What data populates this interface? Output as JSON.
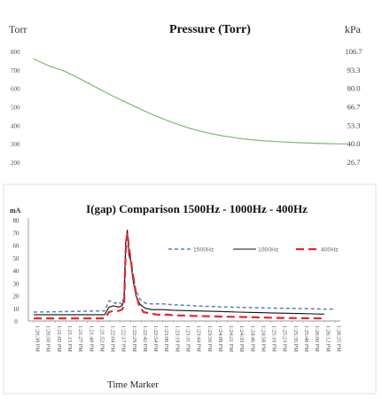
{
  "chart_data": [
    {
      "type": "line",
      "title": "Pressure (Torr)",
      "ylabel_left": "Torr",
      "ylabel_right": "kPa",
      "left_ticks": [
        "800",
        "700",
        "600",
        "500",
        "400",
        "300",
        "200"
      ],
      "right_ticks": [
        "106.7",
        "93.3",
        "80.0",
        "66.7",
        "53.3",
        "40.0",
        "26.7"
      ],
      "ylim": [
        180,
        820
      ],
      "grid": false,
      "series": [
        {
          "color": "#7cbc6a",
          "x": [
            0,
            5,
            10,
            15,
            20,
            25,
            30,
            35,
            40,
            45,
            50,
            55,
            60,
            65,
            70,
            75,
            80,
            85,
            90,
            95,
            100
          ],
          "values": [
            760,
            722,
            692,
            650,
            605,
            560,
            520,
            480,
            443,
            410,
            382,
            360,
            343,
            330,
            320,
            314,
            309,
            305,
            302,
            300,
            299
          ]
        }
      ]
    },
    {
      "type": "line",
      "title": "I(gap) Comparison  1500Hz - 1000Hz - 400Hz",
      "ylabel": "mA",
      "xlabel": "Time Marker",
      "ylim": [
        0,
        80
      ],
      "yticks": [
        0,
        10,
        20,
        30,
        40,
        50,
        60,
        70,
        80
      ],
      "grid": false,
      "legend_position": "upper-right",
      "categories": [
        "1:20:38 PM",
        "1:20:50 PM",
        "1:21:02 PM",
        "1:21:15 PM",
        "1:21:27 PM",
        "1:21:40 PM",
        "1:21:52 PM",
        "1:22:04 PM",
        "1:22:17 PM",
        "1:22:29 PM",
        "1:22:42 PM",
        "1:22:54 PM",
        "1:23:06 PM",
        "1:23:19 PM",
        "1:23:31 PM",
        "1:23:44 PM",
        "1:23:56 PM",
        "1:24:08 PM",
        "1:24:21 PM",
        "1:24:33 PM",
        "1:24:46 PM",
        "1:24:58 PM",
        "1:25:10 PM",
        "1:25:23 PM",
        "1:25:35 PM",
        "1:25:48 PM",
        "1:26:00 PM",
        "1:26:12 PM",
        "1:26:25 PM"
      ],
      "series": [
        {
          "name": "1500Hz",
          "color": "#4f81bd",
          "dash": "dashed",
          "x": [
            0,
            6.6,
            7.0,
            7.3,
            7.6,
            7.9,
            8.2,
            8.4,
            8.55,
            8.7,
            8.85,
            9.0,
            9.2,
            9.5,
            9.9,
            10.4,
            11,
            12,
            13,
            14,
            15,
            16,
            17,
            18,
            19,
            20,
            21,
            22,
            23,
            24,
            25,
            26,
            27,
            28
          ],
          "values": [
            7,
            8,
            16,
            15,
            14,
            15,
            13,
            20,
            62,
            70,
            55,
            50,
            38,
            24,
            17,
            14,
            13.5,
            13.5,
            12.8,
            12.4,
            12.0,
            11.6,
            11.2,
            11.0,
            10.8,
            10.6,
            10.4,
            10.2,
            10.1,
            10.0,
            9.8,
            9.6,
            9.4,
            9.3
          ]
        },
        {
          "name": "1000Hz",
          "color": "#111111",
          "dash": "solid",
          "x": [
            0,
            6.6,
            7.0,
            7.4,
            7.9,
            8.2,
            8.4,
            8.55,
            8.7,
            8.85,
            9.0,
            9.2,
            9.5,
            9.9,
            10.4,
            11,
            12,
            13,
            14,
            15,
            16,
            17,
            18,
            19,
            20,
            21,
            22,
            23,
            24,
            25,
            26,
            27
          ],
          "values": [
            5,
            5,
            11,
            12,
            11,
            12,
            16,
            62,
            72,
            52,
            48,
            34,
            20,
            13,
            10,
            9,
            9,
            8.5,
            8.2,
            8.0,
            7.8,
            7.6,
            7.3,
            7.0,
            6.8,
            6.6,
            6.4,
            6.2,
            6.0,
            5.8,
            5.6,
            5.4
          ]
        },
        {
          "name": "400Hz",
          "color": "#e8262a",
          "dash": "longdash",
          "x": [
            0,
            6.6,
            7.0,
            7.4,
            7.9,
            8.2,
            8.4,
            8.55,
            8.7,
            8.85,
            9.0,
            9.2,
            9.5,
            9.8,
            10.2,
            10.8,
            11.5,
            12.5,
            13,
            14,
            15,
            16,
            17,
            18,
            19,
            20,
            21,
            22,
            23,
            24,
            25,
            26,
            27
          ],
          "values": [
            2,
            2,
            7,
            8,
            8,
            9,
            12,
            55,
            70,
            58,
            50,
            38,
            22,
            12,
            7,
            6,
            5,
            5,
            4.5,
            4.3,
            4.0,
            3.8,
            3.6,
            3.4,
            3.2,
            3.0,
            2.8,
            2.6,
            2.4,
            2.3,
            2.2,
            2.1,
            2.0
          ]
        }
      ]
    }
  ]
}
